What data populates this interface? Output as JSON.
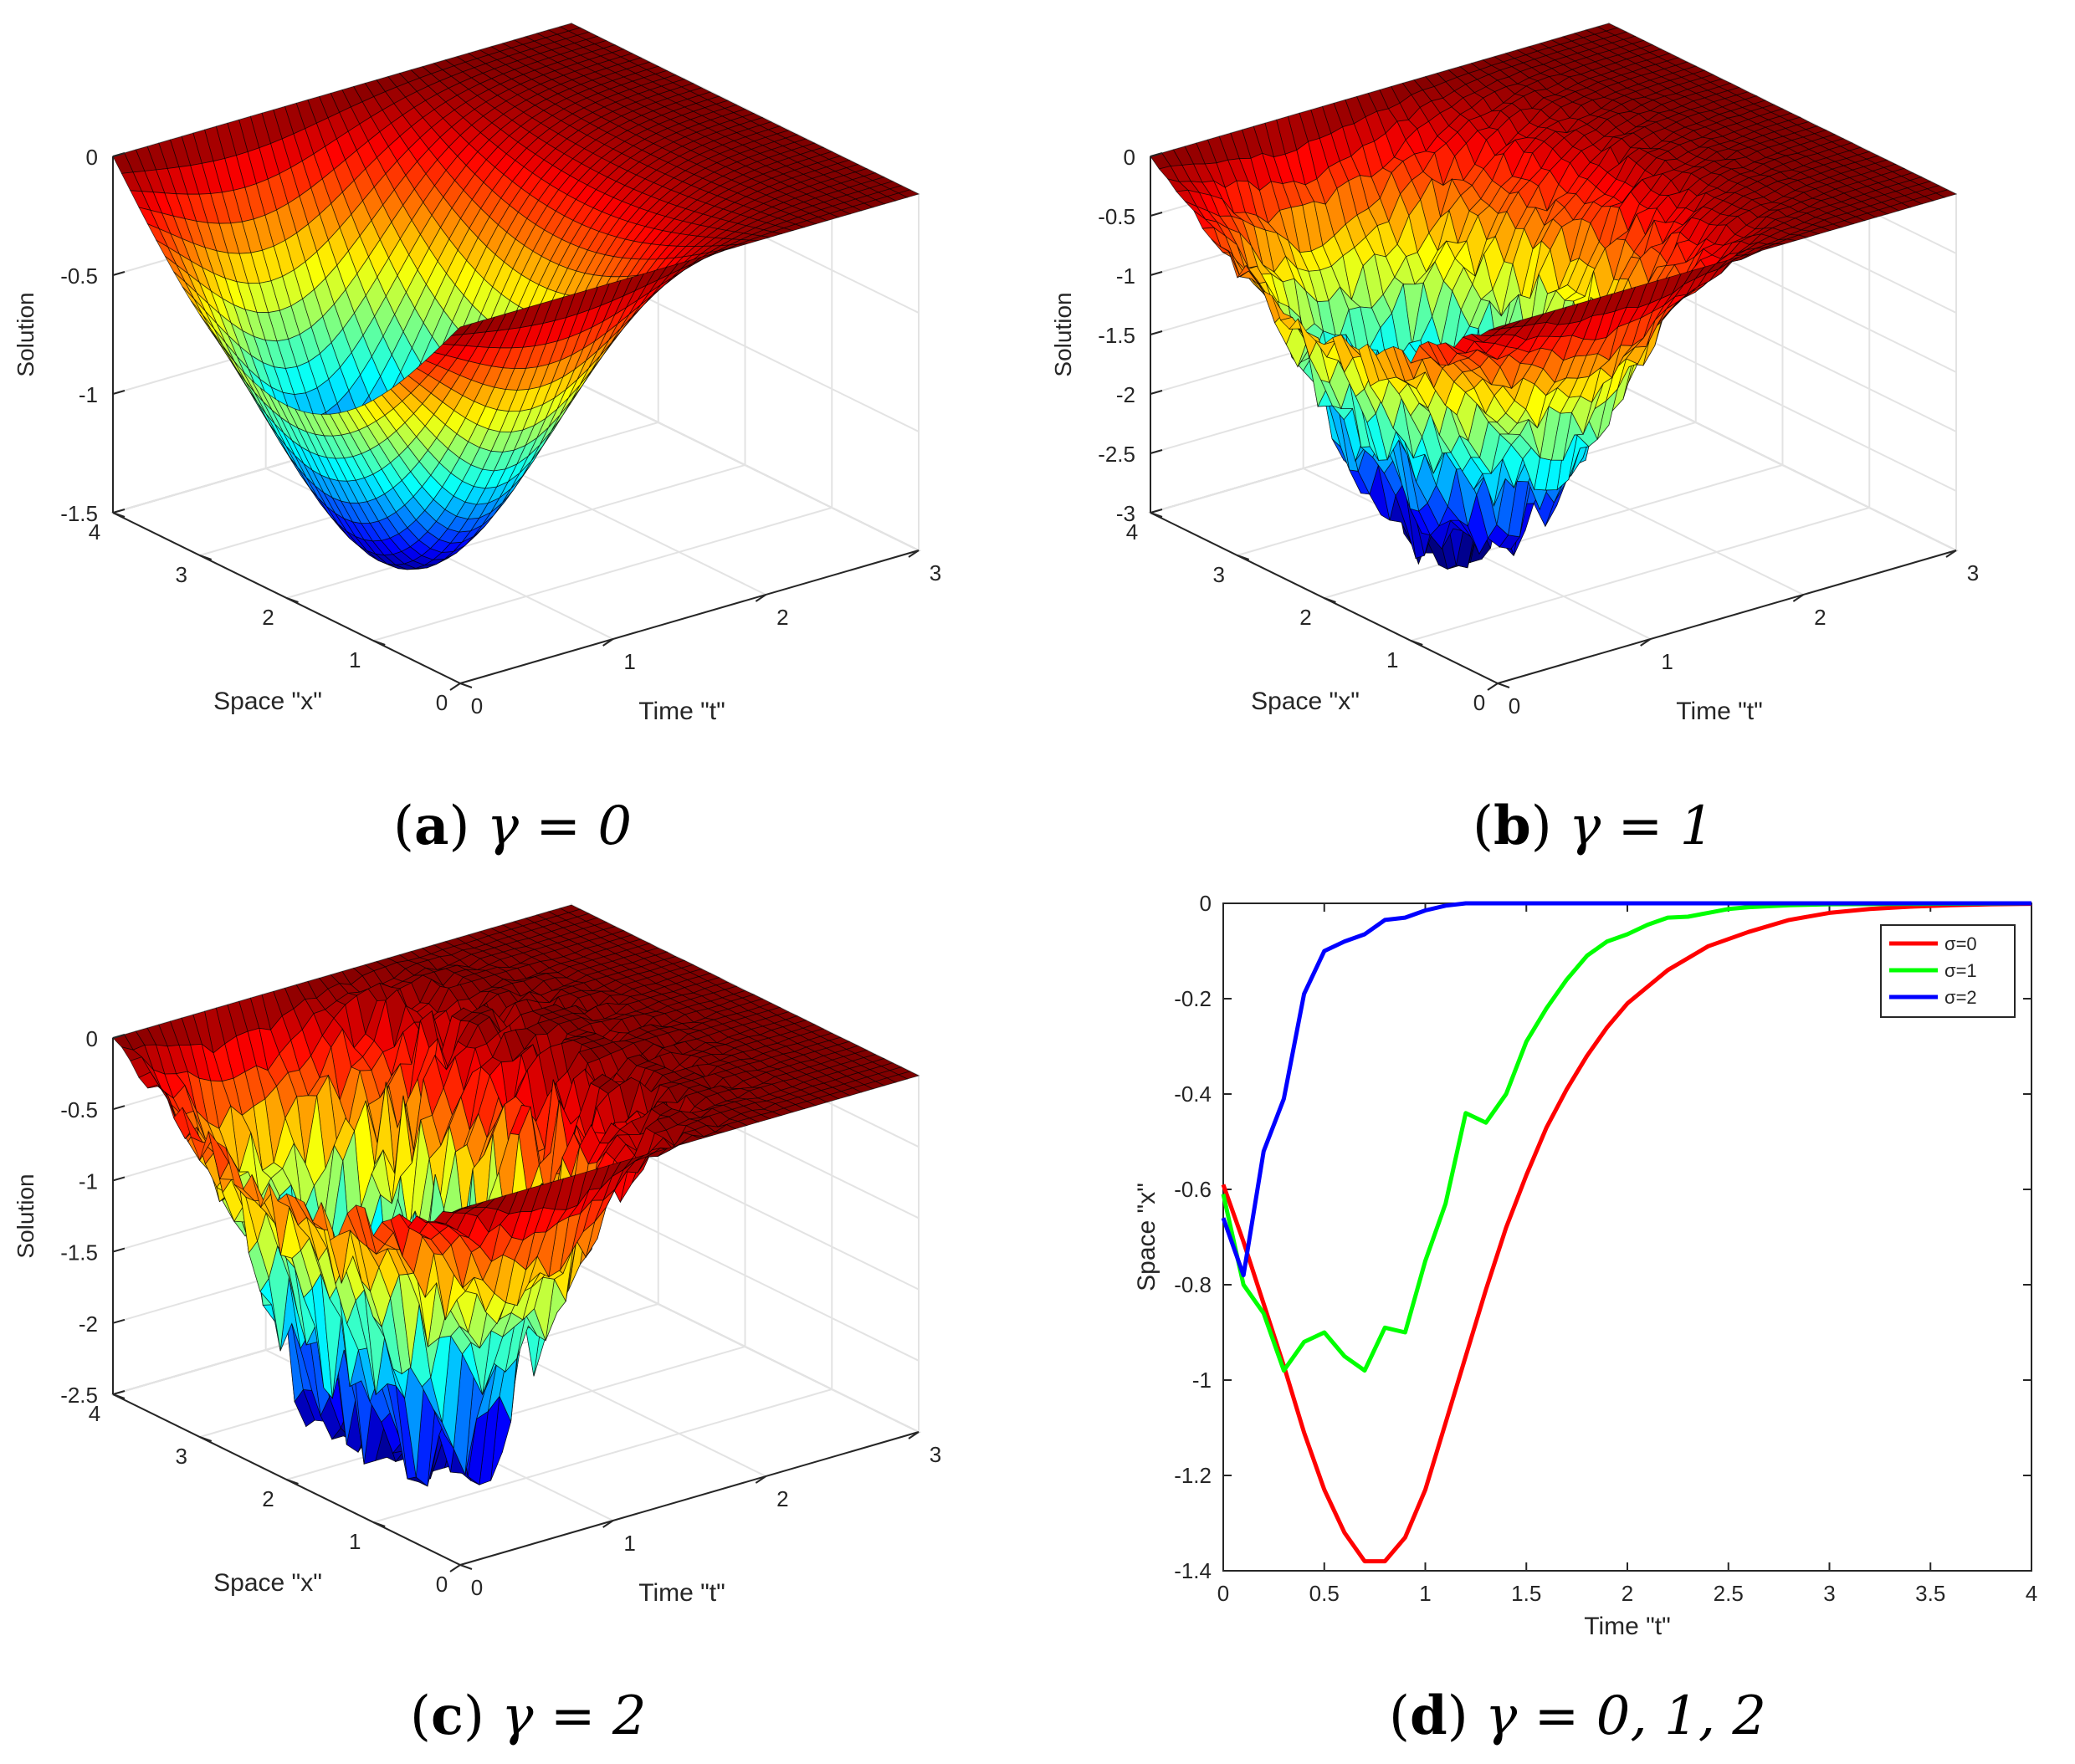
{
  "figure": {
    "panels": [
      {
        "id": "a",
        "caption": {
          "label": "a",
          "text": "γ = 0"
        },
        "chart": {
          "type": "surface3d",
          "zlabel": "Solution",
          "xlabel": "Space \"x\"",
          "ylabel": "Time \"t\"",
          "zticks": [
            "0",
            "-0.5",
            "-1",
            "-1.5"
          ],
          "zlim": [
            -1.5,
            0
          ],
          "xticks": [
            "0",
            "1",
            "2",
            "3",
            "4"
          ],
          "xlim": [
            0,
            4
          ],
          "tticks": [
            "0",
            "1",
            "2",
            "3"
          ],
          "tlim": [
            0,
            3
          ],
          "min_value": -1.5,
          "noise": "none"
        }
      },
      {
        "id": "b",
        "caption": {
          "label": "b",
          "text": "γ = 1"
        },
        "chart": {
          "type": "surface3d",
          "zlabel": "Solution",
          "xlabel": "Space \"x\"",
          "ylabel": "Time \"t\"",
          "zticks": [
            "0",
            "-0.5",
            "-1",
            "-1.5",
            "-2",
            "-2.5",
            "-3"
          ],
          "zlim": [
            -3,
            0
          ],
          "xticks": [
            "0",
            "1",
            "2",
            "3",
            "4"
          ],
          "xlim": [
            0,
            4
          ],
          "tticks": [
            "0",
            "1",
            "2",
            "3"
          ],
          "tlim": [
            0,
            3
          ],
          "min_value": -2.8,
          "noise": "moderate"
        }
      },
      {
        "id": "c",
        "caption": {
          "label": "c",
          "text": "γ = 2"
        },
        "chart": {
          "type": "surface3d",
          "zlabel": "Solution",
          "xlabel": "Space \"x\"",
          "ylabel": "Time \"t\"",
          "zticks": [
            "0",
            "-0.5",
            "-1",
            "-1.5",
            "-2",
            "-2.5"
          ],
          "zlim": [
            -2.5,
            0
          ],
          "xticks": [
            "0",
            "1",
            "2",
            "3",
            "4"
          ],
          "xlim": [
            0,
            4
          ],
          "tticks": [
            "0",
            "1",
            "2",
            "3"
          ],
          "tlim": [
            0,
            3
          ],
          "min_value": -2.8,
          "noise": "strong"
        }
      },
      {
        "id": "d",
        "caption": {
          "label": "d",
          "text": "γ = 0, 1, 2"
        },
        "chart": {
          "type": "line",
          "xlabel": "Time \"t\"",
          "ylabel": "Space \"x\"",
          "xlim": [
            0,
            4
          ],
          "ylim": [
            -1.4,
            0
          ],
          "xticks": [
            "0",
            "0.5",
            "1",
            "1.5",
            "2",
            "2.5",
            "3",
            "3.5",
            "4"
          ],
          "yticks": [
            "0",
            "-0.2",
            "-0.4",
            "-0.6",
            "-0.8",
            "-1",
            "-1.2",
            "-1.4"
          ],
          "legend_position": "top-right",
          "series": [
            {
              "name": "σ=0",
              "color": "#ff0000",
              "x": [
                0,
                0.1,
                0.2,
                0.3,
                0.4,
                0.5,
                0.6,
                0.7,
                0.8,
                0.9,
                1.0,
                1.1,
                1.2,
                1.3,
                1.4,
                1.5,
                1.6,
                1.7,
                1.8,
                1.9,
                2.0,
                2.2,
                2.4,
                2.6,
                2.8,
                3.0,
                3.2,
                3.4,
                3.6,
                3.8,
                4.0
              ],
              "y": [
                -0.59,
                -0.71,
                -0.84,
                -0.97,
                -1.11,
                -1.23,
                -1.32,
                -1.38,
                -1.38,
                -1.33,
                -1.23,
                -1.09,
                -0.95,
                -0.81,
                -0.68,
                -0.57,
                -0.47,
                -0.39,
                -0.32,
                -0.26,
                -0.21,
                -0.14,
                -0.09,
                -0.06,
                -0.035,
                -0.02,
                -0.012,
                -0.007,
                -0.004,
                -0.002,
                -0.001
              ]
            },
            {
              "name": "σ=1",
              "color": "#00ff00",
              "x": [
                0,
                0.1,
                0.2,
                0.3,
                0.4,
                0.5,
                0.6,
                0.7,
                0.8,
                0.9,
                1.0,
                1.1,
                1.2,
                1.3,
                1.4,
                1.5,
                1.6,
                1.7,
                1.8,
                1.9,
                2.0,
                2.1,
                2.2,
                2.3,
                2.4,
                2.5,
                2.6,
                2.8,
                3.0,
                3.5,
                4.0
              ],
              "y": [
                -0.61,
                -0.8,
                -0.86,
                -0.98,
                -0.92,
                -0.9,
                -0.95,
                -0.98,
                -0.89,
                -0.9,
                -0.75,
                -0.63,
                -0.44,
                -0.46,
                -0.4,
                -0.29,
                -0.22,
                -0.16,
                -0.11,
                -0.08,
                -0.065,
                -0.045,
                -0.03,
                -0.028,
                -0.02,
                -0.012,
                -0.008,
                -0.004,
                -0.002,
                -0.001,
                0
              ]
            },
            {
              "name": "σ=2",
              "color": "#0000ff",
              "x": [
                0,
                0.1,
                0.2,
                0.3,
                0.4,
                0.5,
                0.6,
                0.7,
                0.8,
                0.9,
                1.0,
                1.1,
                1.2,
                1.5,
                2.0,
                3.0,
                4.0
              ],
              "y": [
                -0.66,
                -0.78,
                -0.52,
                -0.41,
                -0.19,
                -0.1,
                -0.08,
                -0.065,
                -0.035,
                -0.03,
                -0.015,
                -0.005,
                0,
                0,
                0,
                0,
                0
              ]
            }
          ]
        }
      }
    ]
  }
}
